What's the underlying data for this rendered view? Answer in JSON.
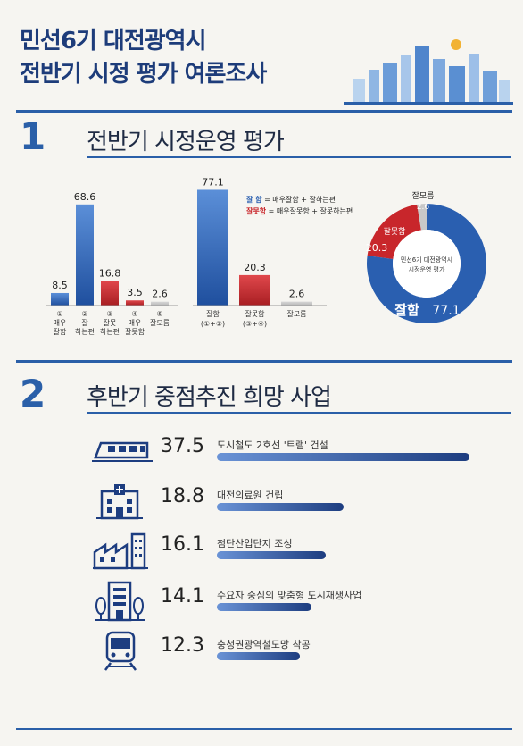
{
  "title": {
    "line1": "민선6기 대전광역시",
    "line2": "전반기 시정 평가 여론조사"
  },
  "section1": {
    "num": "1",
    "title": "전반기 시정운영 평가"
  },
  "section2": {
    "num": "2",
    "title": "후반기 중점추진 희망 사업"
  },
  "legend": {
    "good_key": "잘 함",
    "good_def": "= 매우잘함 + 잘하는편",
    "bad_key": "잘못함",
    "bad_def": "= 매우잘못함 + 잘못하는편"
  },
  "donut": {
    "center1": "민선6기 대전광역시",
    "center2": "시정운영 평가"
  },
  "colors": {
    "blue": "#2a5fb0",
    "red": "#c8262b",
    "gray": "#c3c3c3"
  },
  "chart_data": [
    {
      "type": "bar",
      "categories": [
        [
          "①",
          "매우",
          "잘함"
        ],
        [
          "②",
          "잘",
          "하는편"
        ],
        [
          "③",
          "잘못",
          "하는편"
        ],
        [
          "④",
          "매우",
          "잘못함"
        ],
        [
          "⑤",
          "잘모름"
        ]
      ],
      "values": [
        8.5,
        68.6,
        16.8,
        3.5,
        2.6
      ],
      "colors": [
        "blue",
        "blue",
        "red",
        "red",
        "gray"
      ]
    },
    {
      "type": "bar",
      "categories": [
        [
          "잘함",
          "(①+②)"
        ],
        [
          "잘못함",
          "(③+④)"
        ],
        [
          "잘모름"
        ]
      ],
      "values": [
        77.1,
        20.3,
        2.6
      ],
      "colors": [
        "blue",
        "red",
        "gray"
      ]
    },
    {
      "type": "pie",
      "labels": [
        "잘함",
        "잘못함",
        "잘모름"
      ],
      "values": [
        77.1,
        20.3,
        2.6
      ],
      "colors": [
        "blue",
        "red",
        "gray"
      ]
    },
    {
      "type": "bar",
      "orientation": "horizontal",
      "categories": [
        "도시철도 2호선 '트램' 건설",
        "대전의료원 건립",
        "첨단산업단지 조성",
        "수요자 중심의 맞춤형 도시재생사업",
        "충청권광역철도망 착공"
      ],
      "values": [
        37.5,
        18.8,
        16.1,
        14.1,
        12.3
      ],
      "icons": [
        "tram-icon",
        "hospital-icon",
        "factory-icon",
        "building-icon",
        "train-icon"
      ]
    }
  ]
}
